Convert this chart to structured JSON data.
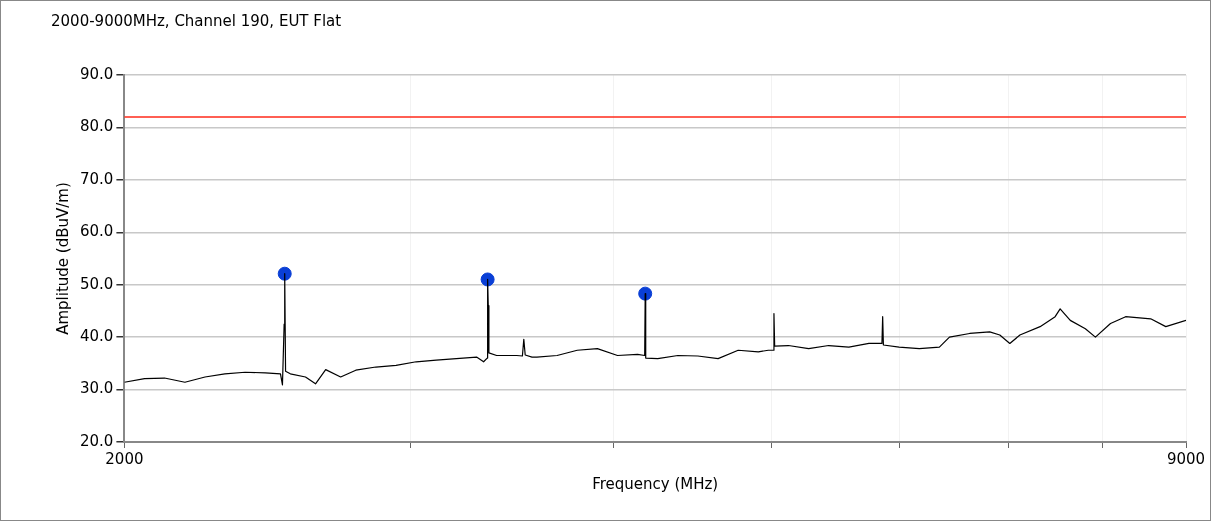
{
  "chart_data": {
    "type": "line",
    "title": "2000-9000MHz, Channel 190, EUT Flat",
    "xlabel": "Frequency (MHz)",
    "ylabel": "Amplitude (dBuV/m)",
    "log": "x",
    "xlim": [
      2000,
      9000
    ],
    "xticks": [
      2000,
      {
        "value": 3000,
        "label": null
      },
      {
        "value": 4000,
        "label": null
      },
      {
        "value": 5000,
        "label": null
      },
      {
        "value": 6000,
        "label": null
      },
      {
        "value": 7000,
        "label": null
      },
      {
        "value": 8000,
        "label": null
      },
      9000
    ],
    "ylim": [
      20,
      90
    ],
    "yticks": [
      {
        "value": 20,
        "label": "20.0"
      },
      {
        "value": 30,
        "label": "30.0"
      },
      {
        "value": 40,
        "label": "40.0"
      },
      {
        "value": 50,
        "label": "50.0"
      },
      {
        "value": 60,
        "label": "60.0"
      },
      {
        "value": 70,
        "label": "70.0"
      },
      {
        "value": 80,
        "label": "80.0"
      },
      {
        "value": 90,
        "label": "90.0"
      }
    ],
    "grid": true,
    "legend": false,
    "ref_lines": [
      {
        "axis": "y",
        "value": 82,
        "color": "#ff2a1a"
      }
    ],
    "series": [
      {
        "color": "#000000",
        "marker": "none",
        "x": [
          2000,
          2058,
          2117,
          2179,
          2242,
          2306,
          2373,
          2442,
          2495,
          2502,
          2508,
          2510,
          2513,
          2530,
          2585,
          2622,
          2660,
          2717,
          2776,
          2856,
          2939,
          3024,
          3111,
          3201,
          3294,
          3327,
          3344,
          3346,
          3349,
          3352,
          3389,
          3487,
          3515,
          3522,
          3529,
          3563,
          3588,
          3692,
          3799,
          3909,
          4022,
          4138,
          4180,
          4183,
          4186,
          4258,
          4381,
          4507,
          4638,
          4772,
          4910,
          4980,
          5015,
          5020,
          5025,
          5124,
          5273,
          5425,
          5582,
          5743,
          5850,
          5856,
          5862,
          5994,
          6168,
          6346,
          6437,
          6624,
          6815,
          6913,
          7012,
          7113,
          7319,
          7477,
          7530,
          7639,
          7804,
          7916,
          8087,
          8262,
          8561,
          8746,
          9000
        ],
        "values": [
          31.4,
          32.1,
          32.2,
          31.4,
          32.4,
          33.0,
          33.3,
          33.2,
          33.0,
          30.9,
          42.5,
          52.1,
          33.5,
          33.0,
          32.4,
          31.1,
          33.8,
          32.4,
          33.7,
          34.3,
          34.6,
          35.3,
          35.6,
          35.9,
          36.2,
          35.3,
          36.0,
          51.0,
          46.0,
          37.0,
          36.5,
          36.5,
          36.4,
          39.6,
          36.6,
          36.2,
          36.2,
          36.5,
          37.5,
          37.8,
          36.5,
          36.7,
          36.5,
          48.3,
          36.0,
          35.9,
          36.5,
          36.4,
          35.9,
          37.5,
          37.2,
          37.5,
          37.5,
          44.5,
          38.3,
          38.4,
          37.8,
          38.4,
          38.1,
          38.8,
          38.8,
          43.9,
          38.5,
          38.1,
          37.8,
          38.1,
          40.0,
          40.7,
          41.0,
          40.4,
          38.8,
          40.4,
          42.0,
          43.9,
          45.4,
          43.2,
          41.6,
          40.0,
          42.6,
          43.9,
          43.5,
          42.0,
          43.2
        ]
      },
      {
        "type": "scatter",
        "color": "#0a3fd6",
        "marker": "circle",
        "x": [
          2510,
          3346,
          4183
        ],
        "values": [
          52.1,
          51.0,
          48.3
        ]
      }
    ]
  }
}
